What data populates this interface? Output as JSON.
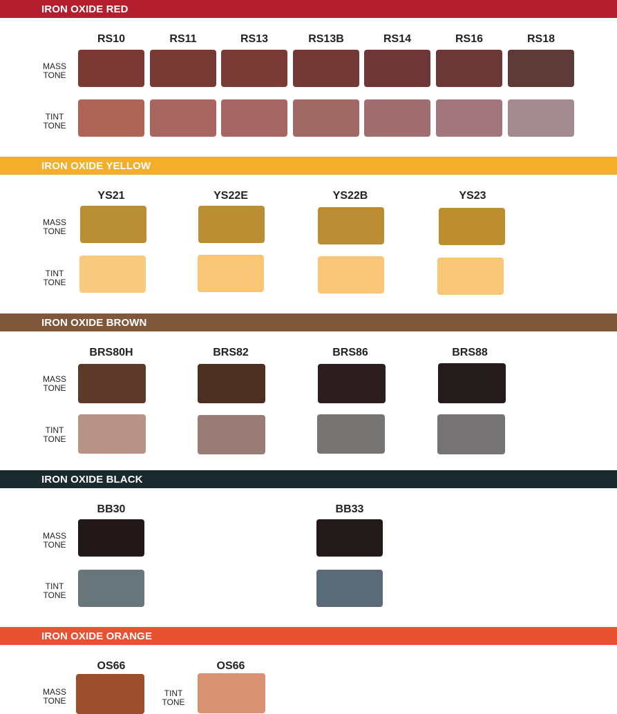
{
  "labels": {
    "mass_tone": [
      "MASS",
      "TONE"
    ],
    "tint_tone": [
      "TINT",
      "TONE"
    ]
  },
  "sections": [
    {
      "title": "IRON OXIDE RED",
      "band_color": "#B31F2E",
      "items": [
        {
          "code": "RS10",
          "mass": "#7A3A33",
          "tint": "#AF6555"
        },
        {
          "code": "RS11",
          "mass": "#773A35",
          "tint": "#A96560"
        },
        {
          "code": "RS13",
          "mass": "#793C36",
          "tint": "#A46564"
        },
        {
          "code": "RS13B",
          "mass": "#723937",
          "tint": "#A16966"
        },
        {
          "code": "RS14",
          "mass": "#6E3637",
          "tint": "#A06D71"
        },
        {
          "code": "RS16",
          "mass": "#6B3737",
          "tint": "#A1777D"
        },
        {
          "code": "RS18",
          "mass": "#5E3A39",
          "tint": "#A38A8E"
        }
      ]
    },
    {
      "title": "IRON OXIDE YELLOW",
      "band_color": "#F3AE2B",
      "items": [
        {
          "code": "YS21",
          "mass": "#B98F35",
          "tint": "#F9C97D"
        },
        {
          "code": "YS22E",
          "mass": "#BA8F34",
          "tint": "#F9C677"
        },
        {
          "code": "YS22B",
          "mass": "#BA8D34",
          "tint": "#F9C678"
        },
        {
          "code": "YS23",
          "mass": "#BC8E2E",
          "tint": "#F8C677"
        }
      ]
    },
    {
      "title": "IRON OXIDE BROWN",
      "band_color": "#7F573B",
      "items": [
        {
          "code": "BRS80H",
          "mass": "#5E3828",
          "tint": "#B89488"
        },
        {
          "code": "BRS82",
          "mass": "#4D2E22",
          "tint": "#9A7C76"
        },
        {
          "code": "BRS86",
          "mass": "#2C1E1E",
          "tint": "#777474"
        },
        {
          "code": "BRS88",
          "mass": "#241B1B",
          "tint": "#757374"
        }
      ]
    },
    {
      "title": "IRON OXIDE BLACK",
      "band_color": "#1A2A2F",
      "items": [
        {
          "code": "BB30",
          "mass": "#221819",
          "tint": "#69767C"
        },
        {
          "code": "BB33",
          "mass": "#221919",
          "tint": "#5B6A79"
        }
      ]
    },
    {
      "title": "IRON OXIDE ORANGE",
      "band_color": "#E85132",
      "items": [
        {
          "code": "OS66",
          "mass": "#9B4F2D"
        },
        {
          "code": "OS66",
          "tint": "#D99173"
        }
      ]
    }
  ]
}
